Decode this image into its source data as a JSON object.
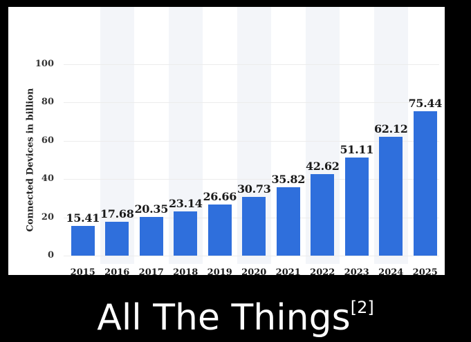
{
  "chart_data": {
    "type": "bar",
    "title": "",
    "xlabel": "",
    "ylabel": "Connected Devices in billion",
    "ylim": [
      0,
      100
    ],
    "yticks": [
      "0",
      "20",
      "40",
      "60",
      "80",
      "100"
    ],
    "categories": [
      "2015",
      "2016",
      "2017",
      "2018",
      "2019",
      "2020",
      "2021",
      "2022",
      "2023",
      "2024",
      "2025"
    ],
    "values": [
      15.41,
      17.68,
      20.35,
      23.14,
      26.66,
      30.73,
      35.82,
      42.62,
      51.11,
      62.12,
      75.44
    ],
    "value_labels": [
      "15.41",
      "17.68",
      "20.35",
      "23.14",
      "26.66",
      "30.73",
      "35.82",
      "42.62",
      "51.11",
      "62.12",
      "75.44"
    ],
    "bar_color": "#2f6fdc",
    "grid": true,
    "legend": "none"
  },
  "caption": {
    "text": "All The Things",
    "superscript": "[2]"
  },
  "colors": {
    "background": "#000000",
    "panel": "#ffffff",
    "bar": "#2f6fdc",
    "caption_text": "#ffffff"
  }
}
